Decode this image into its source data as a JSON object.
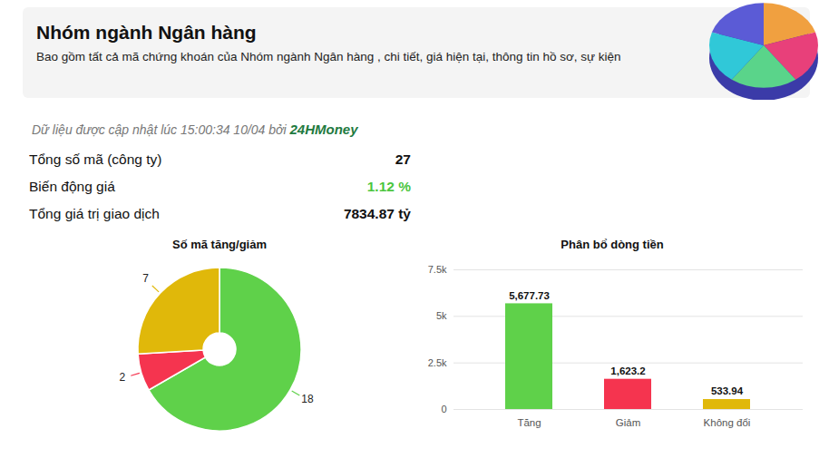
{
  "header": {
    "title": "Nhóm ngành Ngân hàng",
    "subtitle": "Bao gồm tất cả mã chứng khoán của Nhóm ngành Ngân hàng , chi tiết, giá hiện tại, thông tin hồ sơ, sự kiện"
  },
  "update_note": {
    "text": "Dữ liệu được cập nhật lúc 15:00:34 10/04 bởi",
    "source": "24HMoney"
  },
  "stats": [
    {
      "label": "Tổng số mã (công ty)",
      "value": "27"
    },
    {
      "label": "Biến động giá",
      "value": "1.12 %",
      "color": "#4cc63f"
    },
    {
      "label": "Tổng giá trị giao dịch",
      "value": "7834.87 tỷ"
    }
  ],
  "chart_data": [
    {
      "type": "pie",
      "title": "Số mã tăng/giảm",
      "values": [
        18,
        2,
        7
      ],
      "colors": [
        "#5fd14a",
        "#f5344f",
        "#e0b80a"
      ],
      "data_labels": true
    },
    {
      "type": "bar",
      "title": "Phân bổ dòng tiền",
      "categories": [
        "Tăng",
        "Giảm",
        "Không đổi"
      ],
      "values": [
        5677.73,
        1623.2,
        533.94
      ],
      "value_labels": [
        "5,677.73",
        "1,623.2",
        "533.94"
      ],
      "colors": [
        "#5fd14a",
        "#f5344f",
        "#e0b80a"
      ],
      "ylim": [
        0,
        7500
      ],
      "yticks": [
        0,
        {
          "value": 2500,
          "label": "2.5k"
        },
        {
          "value": 5000,
          "label": "5k"
        },
        {
          "value": 7500,
          "label": "7.5k"
        }
      ],
      "grid": true,
      "data_labels": true
    }
  ]
}
